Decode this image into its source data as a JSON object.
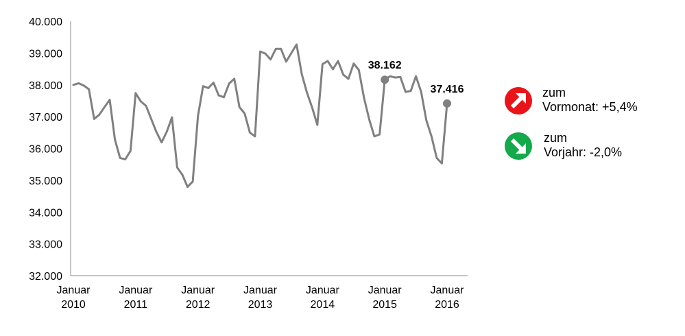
{
  "chart_data": {
    "type": "line",
    "y_ticks": [
      "40.000",
      "39.000",
      "38.000",
      "37.000",
      "36.000",
      "35.000",
      "34.000",
      "33.000",
      "32.000"
    ],
    "ylim": [
      32000,
      40000
    ],
    "x_ticks": [
      {
        "line1": "Januar",
        "line2": "2010",
        "index": 0
      },
      {
        "line1": "Januar",
        "line2": "2011",
        "index": 12
      },
      {
        "line1": "Januar",
        "line2": "2012",
        "index": 24
      },
      {
        "line1": "Januar",
        "line2": "2013",
        "index": 36
      },
      {
        "line1": "Januar",
        "line2": "2014",
        "index": 48
      },
      {
        "line1": "Januar",
        "line2": "2015",
        "index": 60
      },
      {
        "line1": "Januar",
        "line2": "2016",
        "index": 72
      }
    ],
    "series": [
      {
        "color": "#808080",
        "values": [
          38000,
          38050,
          37980,
          37860,
          36930,
          37060,
          37300,
          37530,
          36280,
          35700,
          35660,
          35920,
          37740,
          37480,
          37340,
          36930,
          36520,
          36190,
          36530,
          36980,
          35400,
          35170,
          34790,
          34960,
          37020,
          37960,
          37900,
          38070,
          37670,
          37610,
          38040,
          38190,
          37300,
          37100,
          36500,
          36380,
          39050,
          38980,
          38800,
          39130,
          39130,
          38730,
          39000,
          39270,
          38340,
          37760,
          37290,
          36740,
          38650,
          38750,
          38490,
          38750,
          38320,
          38190,
          38670,
          38470,
          37590,
          36910,
          36380,
          36440,
          38162,
          38270,
          38230,
          38250,
          37780,
          37810,
          38270,
          37780,
          36890,
          36380,
          35700,
          35530,
          37416
        ]
      }
    ],
    "data_labels": [
      {
        "index": 60,
        "text": "38.162"
      },
      {
        "index": 72,
        "text": "37.416"
      }
    ],
    "marker_color": "#808080",
    "grid": false
  },
  "info": [
    {
      "icon": "arrow-up-right-icon",
      "color": "#e8141a",
      "line1": "zum",
      "line2": "Vormonat:  +5,4%"
    },
    {
      "icon": "arrow-down-right-icon",
      "color": "#14a94a",
      "line1": "zum",
      "line2": "Vorjahr: -2,0%"
    }
  ]
}
